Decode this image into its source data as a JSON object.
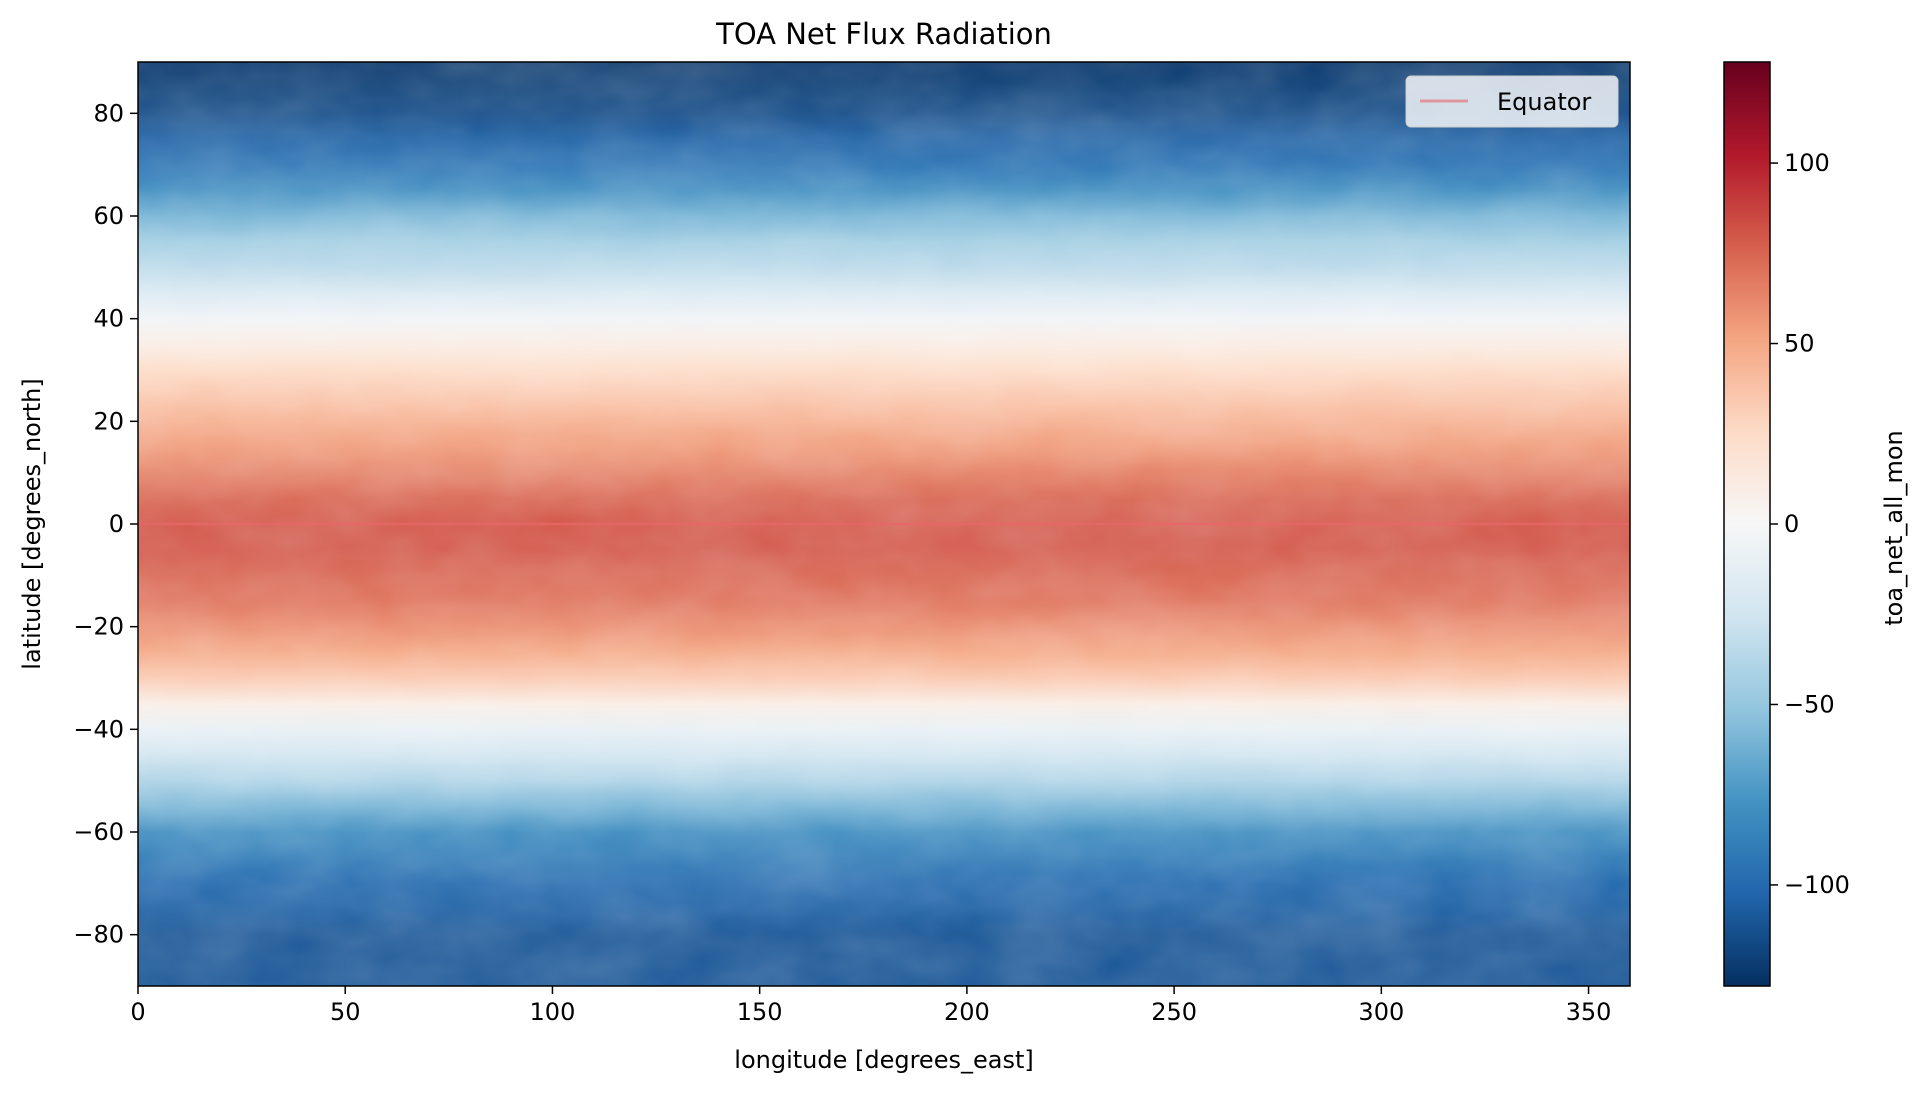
{
  "chart_data": {
    "type": "heatmap",
    "title": "TOA Net Flux Radiation",
    "xlabel": "longitude [degrees_east]",
    "ylabel": "latitude [degrees_north]",
    "xlim": [
      0,
      360
    ],
    "ylim": [
      -90,
      90
    ],
    "x_ticks": [
      0,
      50,
      100,
      150,
      200,
      250,
      300,
      350
    ],
    "y_ticks": [
      80,
      60,
      40,
      20,
      0,
      -20,
      -40,
      -60,
      -80
    ],
    "x_tick_labels": [
      "0",
      "50",
      "100",
      "150",
      "200",
      "250",
      "300",
      "350"
    ],
    "y_tick_labels": [
      "80",
      "60",
      "40",
      "20",
      "0",
      "−20",
      "−40",
      "−60",
      "−80"
    ],
    "colormap": "RdBu_r",
    "colorbar": {
      "label": "toa_net_all_mon",
      "range": [
        -128,
        128
      ],
      "ticks": [
        100,
        50,
        0,
        -50,
        -100
      ],
      "tick_labels": [
        "100",
        "50",
        "0",
        "−50",
        "−100"
      ]
    },
    "zonal_profile": {
      "lat": [
        90,
        85,
        80,
        75,
        70,
        65,
        60,
        55,
        50,
        45,
        40,
        35,
        30,
        25,
        20,
        15,
        10,
        5,
        0,
        -5,
        -10,
        -15,
        -20,
        -25,
        -30,
        -35,
        -40,
        -45,
        -50,
        -55,
        -60,
        -65,
        -70,
        -75,
        -80,
        -85,
        -90
      ],
      "value": [
        -125,
        -120,
        -115,
        -105,
        -95,
        -80,
        -60,
        -45,
        -35,
        -20,
        -5,
        10,
        25,
        35,
        45,
        55,
        65,
        75,
        80,
        80,
        75,
        70,
        60,
        50,
        35,
        10,
        -10,
        -25,
        -40,
        -60,
        -80,
        -90,
        -100,
        -105,
        -110,
        -110,
        -110
      ]
    },
    "equator_line": {
      "lat": 0,
      "color": "#e8666a"
    },
    "legend": {
      "entries": [
        "Equator"
      ],
      "placement": "upper right"
    }
  }
}
